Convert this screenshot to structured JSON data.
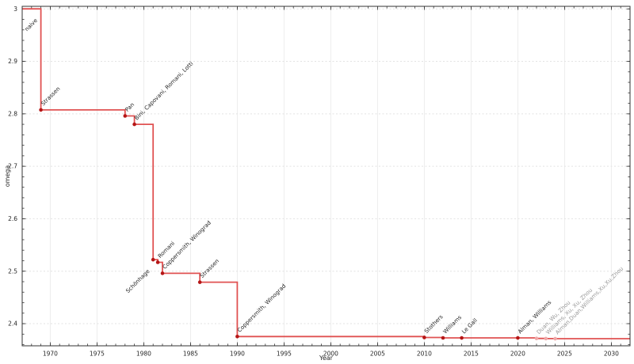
{
  "chart_data": {
    "type": "line",
    "drawstyle": "steps-post",
    "title": "",
    "xlabel": "Year",
    "ylabel": "omega",
    "xlim": [
      1967,
      2032
    ],
    "ylim": [
      2.3578,
      3.0049
    ],
    "x_ticks": {
      "major": [
        1970,
        1975,
        1980,
        1985,
        1990,
        1995,
        2000,
        2005,
        2010,
        2015,
        2020,
        2025,
        2030
      ],
      "labels": [
        "1970",
        "1975",
        "1980",
        "1985",
        "1990",
        "1995",
        "2000",
        "2005",
        "2010",
        "2015",
        "2020",
        "2025",
        "2030"
      ],
      "minor_step": 1
    },
    "y_ticks": {
      "major": [
        2.4,
        2.5,
        2.6,
        2.7,
        2.8,
        2.9,
        3.0
      ],
      "labels": [
        "2.4",
        "2.5",
        "2.6",
        "2.7",
        "2.8",
        "2.9",
        "3"
      ],
      "minor_step": 0.02
    },
    "grid": {
      "vertical": true,
      "horizontal": true
    },
    "legend": null,
    "initial": {
      "label": "naive",
      "omega": 3.0,
      "label_side": "below"
    },
    "points": [
      {
        "label": "Strassen",
        "year": 1969,
        "omega": 2.8074,
        "label_side": "above",
        "faded": false
      },
      {
        "label": "Pan",
        "year": 1978,
        "omega": 2.796,
        "label_side": "above",
        "faded": false
      },
      {
        "label": "Bini, Capovani, Romani, Lotti",
        "year": 1979,
        "omega": 2.78,
        "label_side": "above",
        "faded": false
      },
      {
        "label": "Schönhage",
        "year": 1981,
        "omega": 2.522,
        "label_side": "below",
        "faded": false
      },
      {
        "label": "Romani",
        "year": 1981.5,
        "omega": 2.517,
        "label_side": "above",
        "faded": false
      },
      {
        "label": "Coppersmith, Winograd",
        "year": 1982,
        "omega": 2.496,
        "label_side": "above",
        "faded": false
      },
      {
        "label": "Strassen",
        "year": 1986,
        "omega": 2.479,
        "label_side": "above",
        "faded": false
      },
      {
        "label": "Coppersmith, Winograd",
        "year": 1990,
        "omega": 2.3755,
        "label_side": "above",
        "faded": false
      },
      {
        "label": "Stothers",
        "year": 2010,
        "omega": 2.3737,
        "label_side": "above",
        "faded": false
      },
      {
        "label": "Williams",
        "year": 2012,
        "omega": 2.3729,
        "label_side": "above",
        "faded": false
      },
      {
        "label": "Le Gall",
        "year": 2014,
        "omega": 2.3728639,
        "label_side": "above",
        "faded": false
      },
      {
        "label": "Alman, Williams",
        "year": 2020,
        "omega": 2.3728596,
        "label_side": "above",
        "faded": false
      },
      {
        "label": "Duan, Wu, Zhou",
        "year": 2022,
        "omega": 2.371866,
        "label_side": "above",
        "faded": true
      },
      {
        "label": "Williams, Xu, Xu, Zhou",
        "year": 2023,
        "omega": 2.371552,
        "label_side": "above",
        "faded": true
      },
      {
        "label": "Alman,Duan,Williams,Xu,Xu,Zhou",
        "year": 2024,
        "omega": 2.371339,
        "label_side": "above",
        "faded": true
      }
    ],
    "colors": {
      "line": "#e05252",
      "marker": "#b51616",
      "faded_marker": "#f0a8a8",
      "label": "#262626",
      "faded_label": "#999999",
      "tick_label": "#262626",
      "axis": "#333333",
      "grid_vertical": "#ededed",
      "grid_horizontal": "#e2e2e2",
      "background": "#ffffff"
    }
  }
}
